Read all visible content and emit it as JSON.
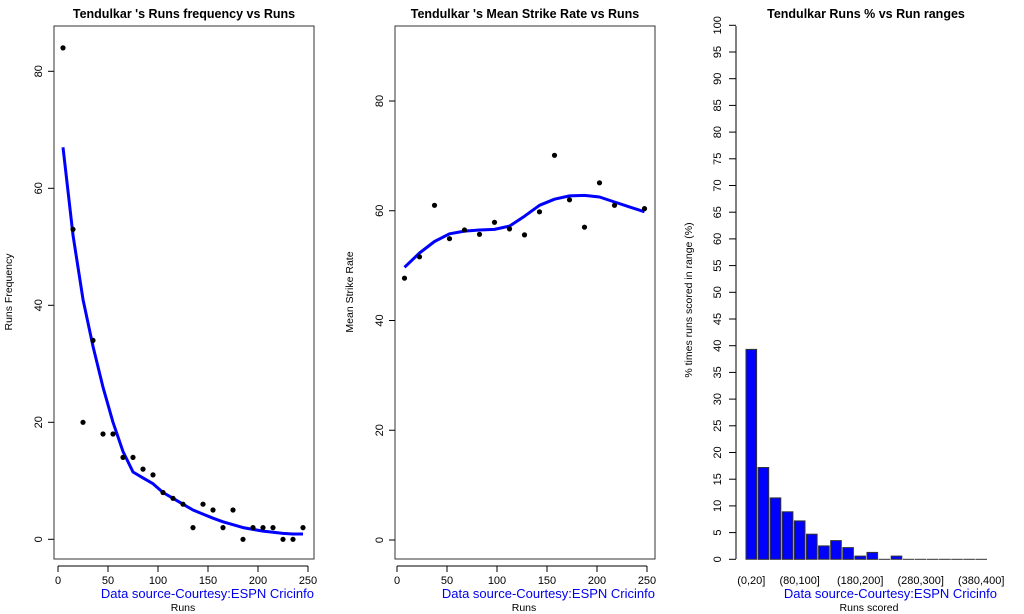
{
  "colors": {
    "accent": "#0000ff",
    "points": "#000000",
    "source_text": "#0000ee",
    "bar_border": "#333333"
  },
  "chart_data": [
    {
      "type": "scatter",
      "title": "Tendulkar 's  Runs frequency vs Runs",
      "xlabel": "Runs",
      "ylabel": "Runs Frequency",
      "source": "Data source-Courtesy:ESPN Cricinfo",
      "xlim": [
        0,
        250
      ],
      "ylim": [
        0,
        84
      ],
      "xticks": [
        0,
        50,
        100,
        150,
        200,
        250
      ],
      "yticks": [
        0,
        20,
        40,
        60,
        80
      ],
      "grid": false,
      "points": {
        "x": [
          5,
          15,
          25,
          35,
          45,
          55,
          65,
          75,
          85,
          95,
          105,
          115,
          125,
          135,
          145,
          155,
          165,
          175,
          185,
          195,
          205,
          215,
          225,
          235,
          245
        ],
        "y": [
          84,
          53,
          20,
          34,
          18,
          18,
          14,
          14,
          12,
          11,
          8,
          7,
          6,
          2,
          6,
          5,
          2,
          5,
          0,
          2,
          2,
          2,
          0,
          0,
          2
        ]
      },
      "fit_line": {
        "x": [
          5,
          15,
          25,
          35,
          45,
          55,
          65,
          75,
          85,
          95,
          105,
          115,
          125,
          135,
          145,
          155,
          165,
          175,
          185,
          195,
          205,
          215,
          225,
          235,
          245
        ],
        "y": [
          67,
          52,
          41,
          33,
          26,
          20,
          15,
          11.5,
          10.5,
          9.5,
          8,
          7,
          6,
          5,
          4.3,
          3.6,
          3,
          2.5,
          2,
          1.7,
          1.4,
          1.2,
          1,
          0.9,
          0.9
        ]
      }
    },
    {
      "type": "scatter",
      "title": "Tendulkar 's Mean Strike Rate vs Runs",
      "xlabel": "Runs",
      "ylabel": "Mean Strike Rate",
      "source": "Data source-Courtesy:ESPN Cricinfo",
      "xlim": [
        0,
        250
      ],
      "ylim": [
        0,
        93
      ],
      "xticks": [
        0,
        50,
        100,
        150,
        200,
        250
      ],
      "yticks": [
        0,
        20,
        40,
        60,
        80
      ],
      "grid": false,
      "points": {
        "x": [
          7.5,
          22.5,
          37.5,
          52.5,
          67.5,
          82.5,
          97.5,
          112.5,
          127.5,
          142.5,
          157.5,
          172.5,
          187.5,
          202.5,
          217.5,
          247.5
        ],
        "y": [
          47.7,
          51.6,
          61.0,
          54.9,
          56.5,
          55.7,
          57.9,
          56.7,
          55.6,
          59.8,
          70.1,
          62.0,
          57.0,
          65.1,
          61.0,
          60.4
        ]
      },
      "fit_line": {
        "x": [
          7.5,
          22.5,
          37.5,
          52.5,
          67.5,
          82.5,
          97.5,
          112.5,
          127.5,
          142.5,
          157.5,
          172.5,
          187.5,
          202.5,
          217.5,
          232.5,
          247.5
        ],
        "y": [
          49.7,
          52.3,
          54.4,
          55.8,
          56.3,
          56.5,
          56.6,
          57.2,
          59.0,
          61.0,
          62.1,
          62.7,
          62.8,
          62.5,
          61.6,
          60.7,
          59.8
        ]
      }
    },
    {
      "type": "bar",
      "title": "Tendulkar Runs %  vs Run ranges",
      "xlabel": "Runs scored",
      "ylabel": "% times runs scored in range (%)",
      "source": "Data source-Courtesy:ESPN Cricinfo",
      "ylim": [
        0,
        100
      ],
      "yticks": [
        0,
        5,
        10,
        15,
        20,
        25,
        30,
        35,
        40,
        45,
        50,
        55,
        60,
        65,
        70,
        75,
        80,
        85,
        90,
        95,
        100
      ],
      "categories": [
        "(0,20]",
        "(20,40]",
        "(40,60]",
        "(60,80]",
        "(80,100]",
        "(100,120]",
        "(120,140]",
        "(140,160]",
        "(160,180]",
        "(180,200]",
        "(200,220]",
        "(220,240]",
        "(240,260]",
        "(260,280]",
        "(280,300]",
        "(300,320]",
        "(320,340]",
        "(340,360]",
        "(360,380]",
        "(380,400]"
      ],
      "shown_tick_labels": [
        "(0,20]",
        "(80,100]",
        "(180,200]",
        "(280,300]",
        "(380,400]"
      ],
      "values": [
        39.3,
        17.2,
        11.5,
        8.9,
        7.2,
        4.7,
        2.5,
        3.5,
        2.2,
        0.6,
        1.3,
        0,
        0.6,
        0,
        0,
        0,
        0,
        0,
        0,
        0
      ],
      "grid": false
    }
  ]
}
